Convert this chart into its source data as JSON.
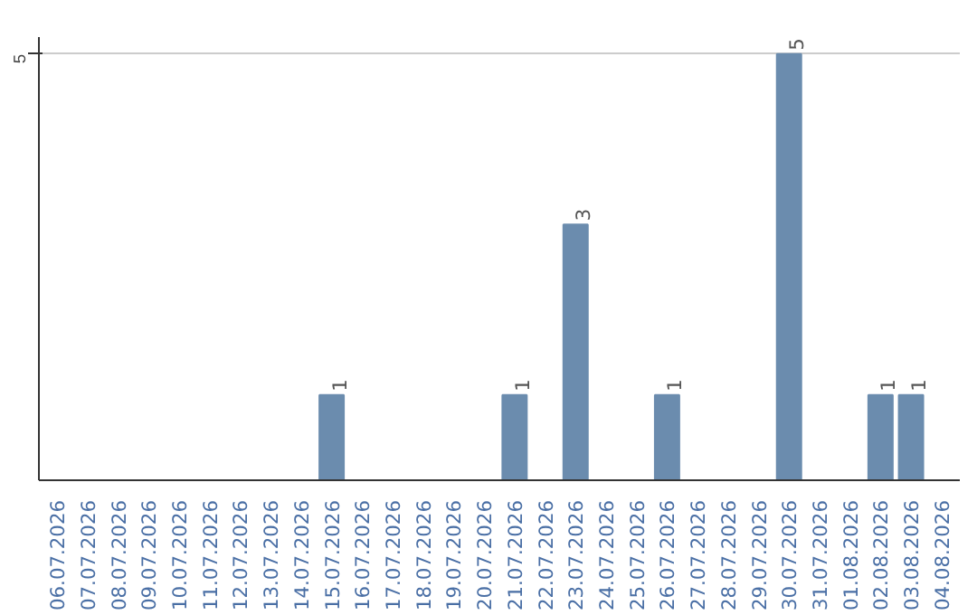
{
  "chart_data": {
    "type": "bar",
    "categories": [
      "06.07.2026",
      "07.07.2026",
      "08.07.2026",
      "09.07.2026",
      "10.07.2026",
      "11.07.2026",
      "12.07.2026",
      "13.07.2026",
      "14.07.2026",
      "15.07.2026",
      "16.07.2026",
      "17.07.2026",
      "18.07.2026",
      "19.07.2026",
      "20.07.2026",
      "21.07.2026",
      "22.07.2026",
      "23.07.2026",
      "24.07.2026",
      "25.07.2026",
      "26.07.2026",
      "27.07.2026",
      "28.07.2026",
      "29.07.2026",
      "30.07.2026",
      "31.07.2026",
      "01.08.2026",
      "02.08.2026",
      "03.08.2026",
      "04.08.2026"
    ],
    "values": [
      0,
      0,
      0,
      0,
      0,
      0,
      0,
      0,
      0,
      1,
      0,
      0,
      0,
      0,
      0,
      1,
      0,
      3,
      0,
      0,
      1,
      0,
      0,
      0,
      5,
      0,
      0,
      1,
      1,
      0
    ],
    "value_labels": [
      null,
      null,
      null,
      null,
      null,
      null,
      null,
      null,
      null,
      "1",
      null,
      null,
      null,
      null,
      null,
      "1",
      null,
      "3",
      null,
      null,
      "1",
      null,
      null,
      null,
      "5",
      null,
      null,
      "1",
      "1",
      null
    ],
    "color": "#6b8cae",
    "ylim": [
      0,
      5.2
    ],
    "yticks": [
      5
    ],
    "grid": "y"
  }
}
